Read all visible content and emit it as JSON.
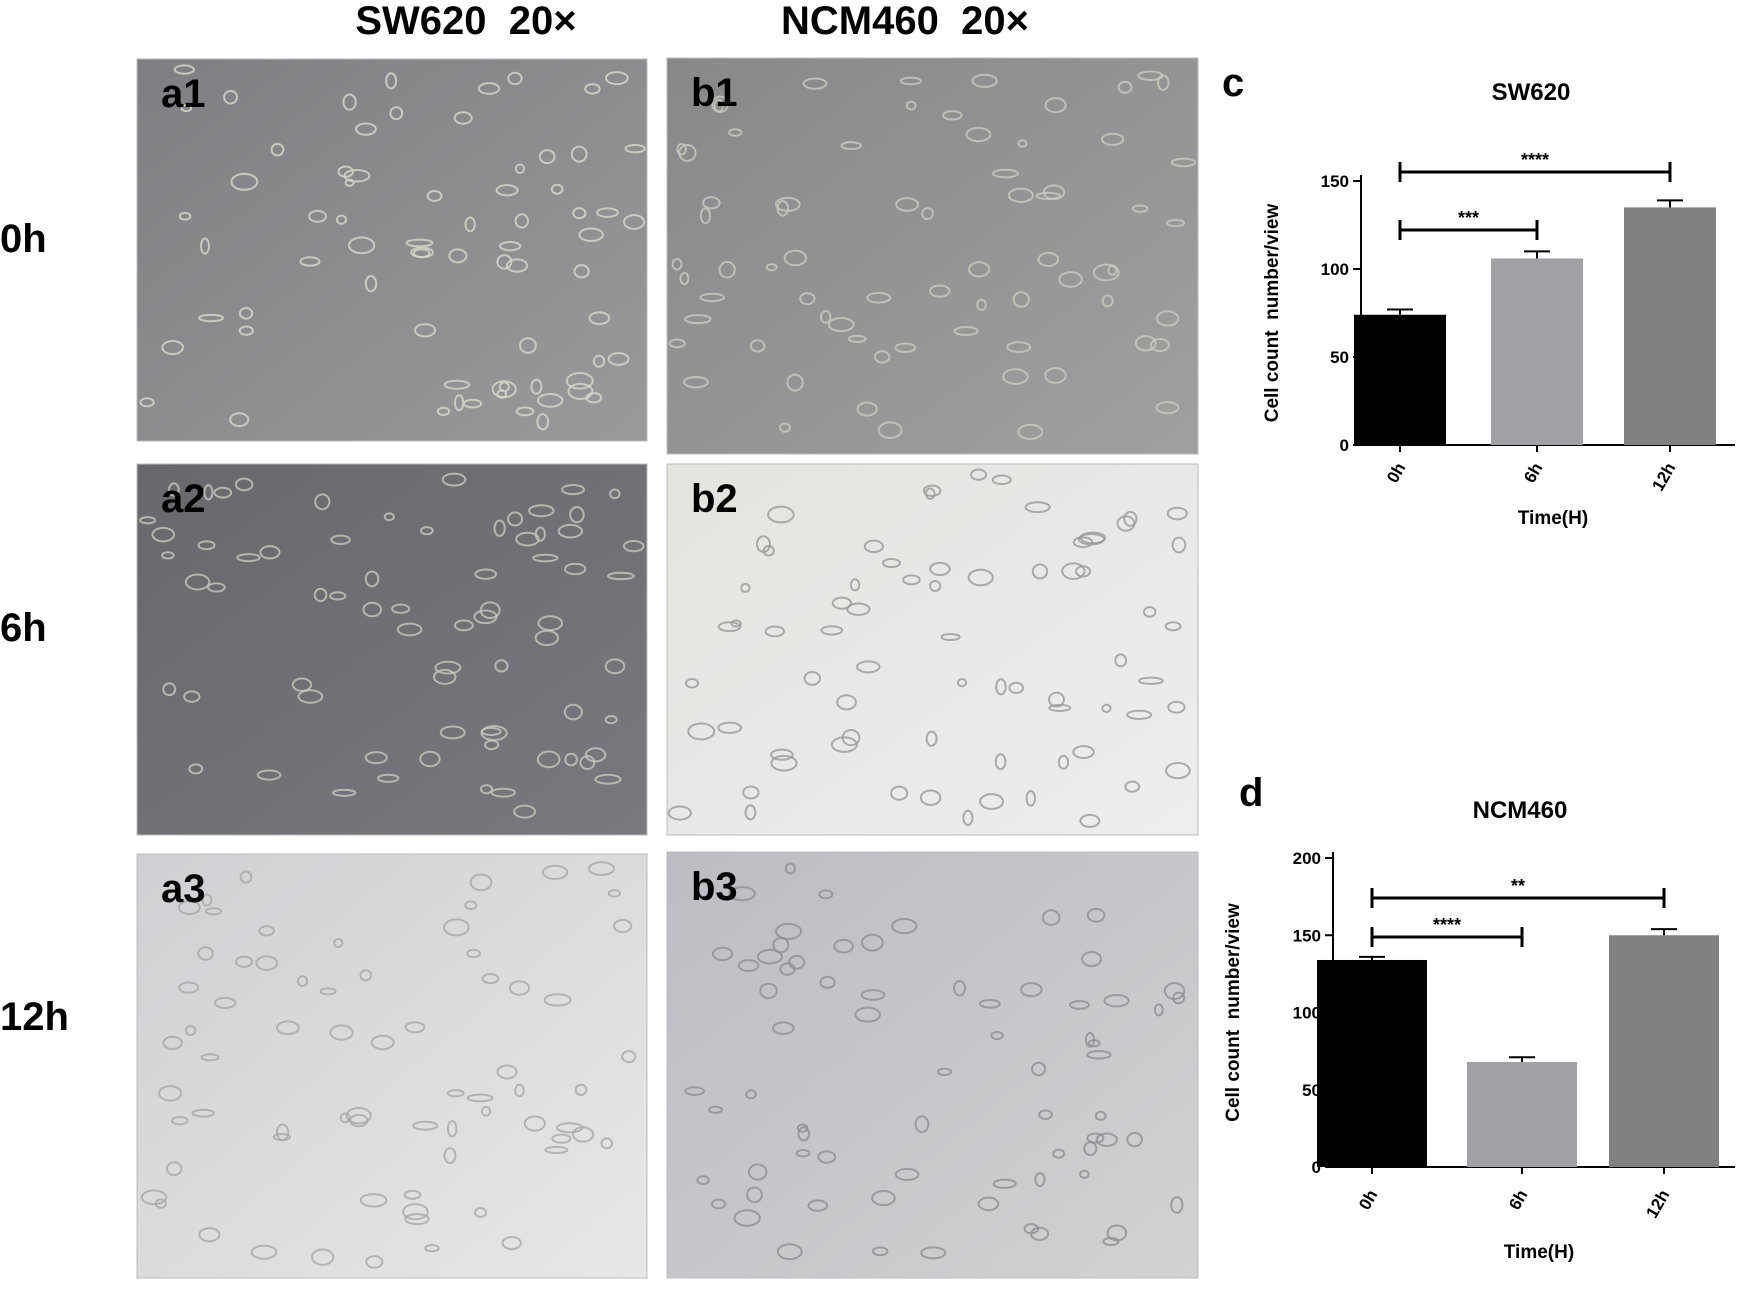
{
  "figure": {
    "column_headers": [
      "SW620  20×",
      "NCM460  20×"
    ],
    "row_labels": [
      "0h",
      "6h",
      "12h"
    ],
    "panels": [
      "a1",
      "a2",
      "a3",
      "b1",
      "b2",
      "b3"
    ]
  },
  "chart_data": [
    {
      "type": "bar",
      "panel_label": "c",
      "title": "SW620",
      "x_label": "Time(H)",
      "y_label": "Cell count  number/view",
      "categories": [
        "0h",
        "6h",
        "12h"
      ],
      "values": [
        74,
        106,
        135
      ],
      "errors": [
        3,
        4,
        4
      ],
      "colors": [
        "#000000",
        "#a2a2a6",
        "#818181"
      ],
      "ylim": [
        0,
        150
      ],
      "yticks": [
        0,
        50,
        100,
        150
      ],
      "annotations": [
        {
          "text": "***",
          "between": [
            "0h",
            "6h"
          ]
        },
        {
          "text": "****",
          "between": [
            "0h",
            "12h"
          ]
        }
      ]
    },
    {
      "type": "bar",
      "panel_label": "d",
      "title": "NCM460",
      "x_label": "Time(H)",
      "y_label": "Cell count  number/view",
      "categories": [
        "0h",
        "6h",
        "12h"
      ],
      "values": [
        134,
        68,
        150
      ],
      "errors": [
        2,
        3,
        4
      ],
      "colors": [
        "#000000",
        "#a2a2a6",
        "#818181"
      ],
      "ylim": [
        0,
        200
      ],
      "yticks": [
        0,
        50,
        100,
        150,
        200
      ],
      "annotations": [
        {
          "text": "****",
          "between": [
            "0h",
            "6h"
          ]
        },
        {
          "text": "**",
          "between": [
            "0h",
            "12h"
          ]
        }
      ]
    }
  ]
}
